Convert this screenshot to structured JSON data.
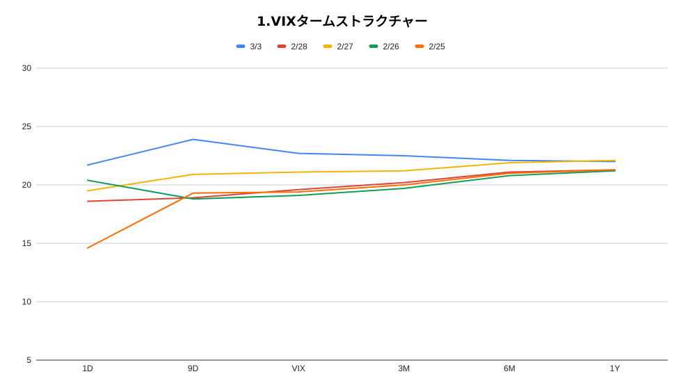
{
  "chart_data": {
    "type": "line",
    "title": "1.VIXタームストラクチャー",
    "xlabel": "",
    "ylabel": "",
    "categories": [
      "1D",
      "9D",
      "VIX",
      "3M",
      "6M",
      "1Y"
    ],
    "ylim": [
      5,
      30
    ],
    "yticks": [
      5,
      10,
      15,
      20,
      25,
      30
    ],
    "grid": true,
    "legend_position": "top",
    "series": [
      {
        "name": "3/3",
        "color": "#4285f4",
        "values": [
          21.7,
          23.9,
          22.7,
          22.5,
          22.1,
          22.0
        ]
      },
      {
        "name": "2/28",
        "color": "#db4437",
        "values": [
          18.6,
          18.9,
          19.6,
          20.2,
          21.1,
          21.3
        ]
      },
      {
        "name": "2/27",
        "color": "#f4b400",
        "values": [
          19.5,
          20.9,
          21.1,
          21.2,
          21.9,
          22.1
        ]
      },
      {
        "name": "2/26",
        "color": "#0f9d58",
        "values": [
          20.4,
          18.8,
          19.1,
          19.7,
          20.8,
          21.2
        ]
      },
      {
        "name": "2/25",
        "color": "#ff6d01",
        "values": [
          14.6,
          19.3,
          19.4,
          20.0,
          21.0,
          21.3
        ]
      }
    ]
  }
}
